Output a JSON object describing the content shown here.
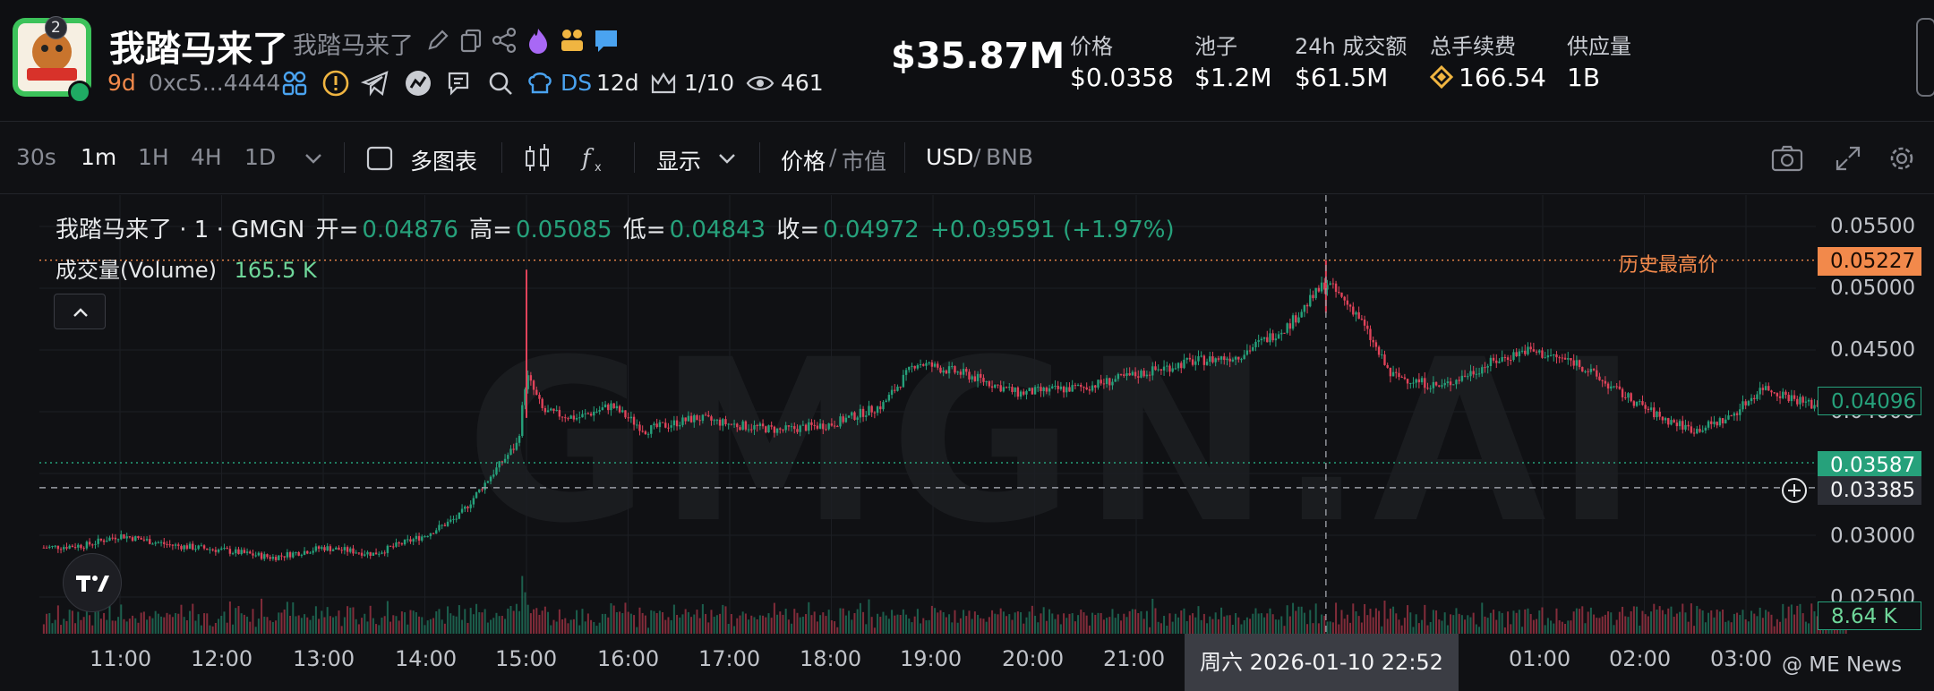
{
  "token": {
    "name": "我踏马来了",
    "alias": "我踏马来了",
    "badge_count": "2",
    "age": "9d",
    "address": "0xc5...4444",
    "ds_label": "DS",
    "ds_age": "12d",
    "holders_rank": "1/10",
    "views": "461"
  },
  "stats": {
    "market_cap": "$35.87M",
    "items": [
      {
        "label": "价格",
        "value": "$0.0358"
      },
      {
        "label": "池子",
        "value": "$1.2M"
      },
      {
        "label": "24h 成交额",
        "value": "$61.5M"
      },
      {
        "label": "总手续费",
        "value": "166.54"
      },
      {
        "label": "供应量",
        "value": "1B"
      }
    ]
  },
  "toolbar": {
    "intervals": [
      "30s",
      "1m",
      "1H",
      "4H",
      "1D"
    ],
    "active_interval": "1m",
    "multi_chart": "多图表",
    "display": "显示",
    "price": "价格",
    "market_cap": "市值",
    "usd": "USD",
    "bnb": "BNB",
    "slash": "/"
  },
  "legend": {
    "title": "我踏马来了 · 1 · GMGN",
    "open_label": "开=",
    "open": "0.04876",
    "high_label": "高=",
    "high": "0.05085",
    "low_label": "低=",
    "low": "0.04843",
    "close_label": "收=",
    "close": "0.04972",
    "change": "+0.0₃9591 (+1.97%)",
    "volume_label": "成交量(Volume)",
    "volume": "165.5 K"
  },
  "chart_data": {
    "type": "candlestick",
    "y_ticks": [
      "0.05500",
      "0.05000",
      "0.04500",
      "0.04000",
      "0.03000",
      "0.02500"
    ],
    "x_ticks": [
      "11:00",
      "12:00",
      "13:00",
      "14:00",
      "15:00",
      "16:00",
      "17:00",
      "18:00",
      "19:00",
      "20:00",
      "21:00",
      "01:00",
      "02:00",
      "03:00"
    ],
    "ylim": [
      0.0245,
      0.0555
    ],
    "price_path": [
      [
        "10:15",
        0.029
      ],
      [
        "10:40",
        0.0292
      ],
      [
        "11:00",
        0.03
      ],
      [
        "11:30",
        0.0292
      ],
      [
        "12:00",
        0.0288
      ],
      [
        "12:30",
        0.0282
      ],
      [
        "13:00",
        0.029
      ],
      [
        "13:30",
        0.0285
      ],
      [
        "14:00",
        0.03
      ],
      [
        "14:20",
        0.0315
      ],
      [
        "14:40",
        0.035
      ],
      [
        "14:55",
        0.0375
      ],
      [
        "15:00",
        0.043
      ],
      [
        "15:10",
        0.04
      ],
      [
        "15:30",
        0.0395
      ],
      [
        "15:50",
        0.0405
      ],
      [
        "16:10",
        0.0385
      ],
      [
        "16:40",
        0.0395
      ],
      [
        "17:00",
        0.039
      ],
      [
        "17:30",
        0.0385
      ],
      [
        "18:00",
        0.039
      ],
      [
        "18:30",
        0.0405
      ],
      [
        "18:50",
        0.044
      ],
      [
        "19:20",
        0.043
      ],
      [
        "19:50",
        0.0415
      ],
      [
        "20:30",
        0.042
      ],
      [
        "21:00",
        0.043
      ],
      [
        "21:30",
        0.044
      ],
      [
        "22:00",
        0.0445
      ],
      [
        "22:30",
        0.047
      ],
      [
        "22:52",
        0.0505
      ],
      [
        "23:10",
        0.048
      ],
      [
        "23:30",
        0.043
      ],
      [
        "00:00",
        0.042
      ],
      [
        "00:30",
        0.044
      ],
      [
        "00:50",
        0.045
      ],
      [
        "01:20",
        0.044
      ],
      [
        "01:40",
        0.042
      ],
      [
        "02:10",
        0.0395
      ],
      [
        "02:30",
        0.0385
      ],
      [
        "02:50",
        0.0395
      ],
      [
        "03:10",
        0.042
      ],
      [
        "03:40",
        0.0405
      ],
      [
        "04:00",
        0.0412
      ]
    ],
    "ath_label": "历史最高价",
    "ath_value": "0.05227",
    "last_price": "0.04096",
    "price_line": "0.03587",
    "crosshair_price": "0.03385",
    "crosshair_date": "周六 2026-01-10  22:52",
    "volume_last": "8.64 K",
    "colors": {
      "up": "#26a17b",
      "down": "#e0435a",
      "ath": "#f2894b",
      "last": "#26a17b"
    }
  },
  "watermark": "GMGN.AI",
  "footer_credit": "@ ME News"
}
